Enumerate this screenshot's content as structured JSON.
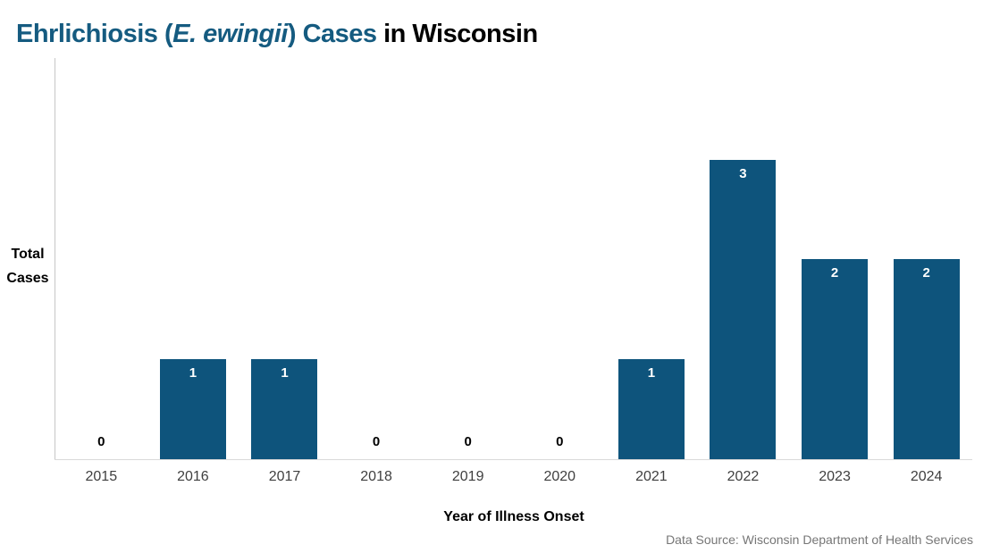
{
  "title": {
    "accent_prefix": "Ehrlichiosis (",
    "accent_italic": "E. ewingii",
    "accent_suffix": ") Cases",
    "rest": " in Wisconsin"
  },
  "y_axis": {
    "label_line1": "Total",
    "label_line2": "Cases"
  },
  "x_axis": {
    "label": "Year of Illness Onset"
  },
  "footer": {
    "data_source": "Data Source: Wisconsin Department of Health Services"
  },
  "colors": {
    "bar": "#0E547C",
    "title_accent": "#155B80",
    "title_rest": "#000000",
    "bar_value_label": "#FFFFFF",
    "zero_value_label": "#000000",
    "axis_line": "#D9D9D9",
    "tick_label": "#3F3F3F",
    "source_text": "#767676"
  },
  "chart_data": {
    "type": "bar",
    "title": "Ehrlichiosis (E. ewingii) Cases in Wisconsin",
    "categories": [
      "2015",
      "2016",
      "2017",
      "2018",
      "2019",
      "2020",
      "2021",
      "2022",
      "2023",
      "2024"
    ],
    "values": [
      0,
      1,
      1,
      0,
      0,
      0,
      1,
      3,
      2,
      2
    ],
    "xlabel": "Year of Illness Onset",
    "ylabel": "Total Cases",
    "ylim": [
      0,
      4
    ],
    "grid": false,
    "legend": "none",
    "data_labels": "inside-end, zeros shown above baseline in black"
  }
}
